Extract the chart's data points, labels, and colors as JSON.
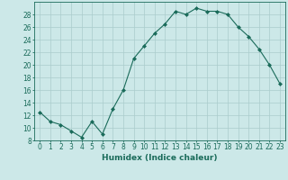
{
  "x": [
    0,
    1,
    2,
    3,
    4,
    5,
    6,
    7,
    8,
    9,
    10,
    11,
    12,
    13,
    14,
    15,
    16,
    17,
    18,
    19,
    20,
    21,
    22,
    23
  ],
  "y": [
    12.5,
    11.0,
    10.5,
    9.5,
    8.5,
    11.0,
    9.0,
    13.0,
    16.0,
    21.0,
    23.0,
    25.0,
    26.5,
    28.5,
    28.0,
    29.0,
    28.5,
    28.5,
    28.0,
    26.0,
    24.5,
    22.5,
    20.0,
    17.0
  ],
  "line_color": "#1a6b5a",
  "marker": "D",
  "markersize": 2,
  "bg_color": "#cce8e8",
  "grid_color": "#aacccc",
  "xlabel": "Humidex (Indice chaleur)",
  "ylim": [
    8,
    30
  ],
  "yticks": [
    8,
    10,
    12,
    14,
    16,
    18,
    20,
    22,
    24,
    26,
    28
  ],
  "xticks": [
    0,
    1,
    2,
    3,
    4,
    5,
    6,
    7,
    8,
    9,
    10,
    11,
    12,
    13,
    14,
    15,
    16,
    17,
    18,
    19,
    20,
    21,
    22,
    23
  ],
  "xlabel_fontsize": 6.5,
  "tick_fontsize": 5.5
}
